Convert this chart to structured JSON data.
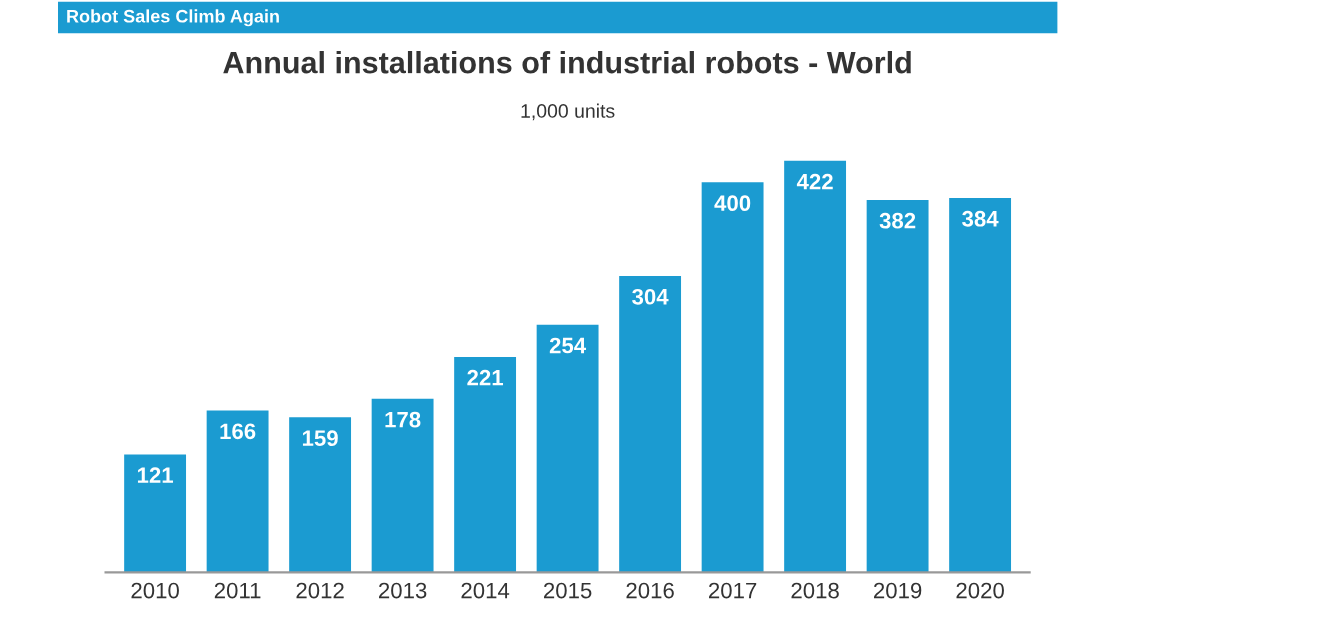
{
  "chart_data": {
    "type": "bar",
    "title": "Annual installations of industrial robots - World",
    "subtitle": "1,000 units",
    "annotations": [
      "Robot Sales Climb Again"
    ],
    "categories": [
      "2010",
      "2011",
      "2012",
      "2013",
      "2014",
      "2015",
      "2016",
      "2017",
      "2018",
      "2019",
      "2020"
    ],
    "values": [
      121,
      166,
      159,
      178,
      221,
      254,
      304,
      400,
      422,
      382,
      384
    ],
    "color": "#1b9bd1",
    "data_labels": true
  }
}
